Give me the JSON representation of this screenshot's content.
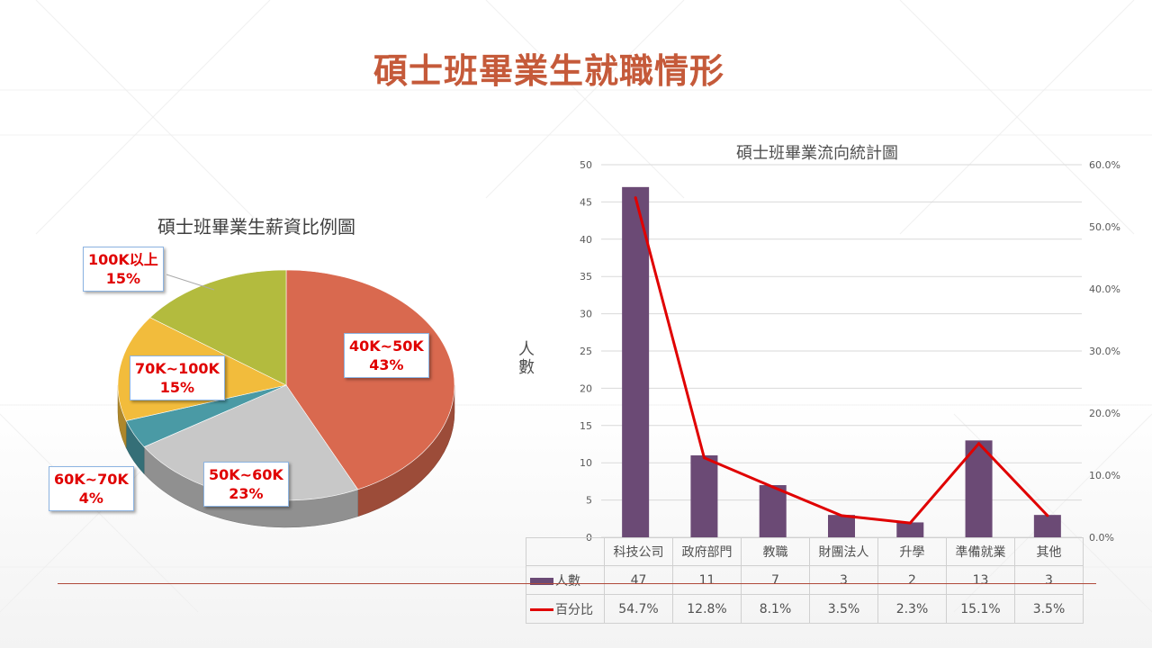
{
  "slide_title": "碩士班畢業生就職情形",
  "chart_data": [
    {
      "type": "pie",
      "title": "碩士班畢業生薪資比例圖",
      "slices": [
        {
          "label": "40K~50K",
          "percent": 43,
          "color": "#d9694f"
        },
        {
          "label": "50K~60K",
          "percent": 23,
          "color": "#c8c8c8"
        },
        {
          "label": "60K~70K",
          "percent": 4,
          "color": "#4a9aa5"
        },
        {
          "label": "70K~100K",
          "percent": 15,
          "color": "#f2bc3c"
        },
        {
          "label": "100K以上",
          "percent": 15,
          "color": "#b3bb3e"
        }
      ]
    },
    {
      "type": "bar",
      "title": "碩士班畢業流向統計圖",
      "ylabel": "人數",
      "categories": [
        "科技公司",
        "政府部門",
        "教職",
        "財團法人",
        "升學",
        "準備就業",
        "其他"
      ],
      "ylim": [
        0,
        50
      ],
      "yticks": [
        "0",
        "5",
        "10",
        "15",
        "20",
        "25",
        "30",
        "35",
        "40",
        "45",
        "50"
      ],
      "y2lim": [
        0,
        60
      ],
      "y2ticks": [
        "0.0%",
        "10.0%",
        "20.0%",
        "30.0%",
        "40.0%",
        "50.0%",
        "60.0%"
      ],
      "series": [
        {
          "name": "人數",
          "type": "bar",
          "color": "#6b4a75",
          "values": [
            47,
            11,
            7,
            3,
            2,
            13,
            3
          ],
          "labels": [
            "47",
            "11",
            "7",
            "3",
            "2",
            "13",
            "3"
          ]
        },
        {
          "name": "百分比",
          "type": "line",
          "color": "#e00000",
          "axis": "secondary",
          "values": [
            54.7,
            12.8,
            8.1,
            3.5,
            2.3,
            15.1,
            3.5
          ],
          "labels": [
            "54.7%",
            "12.8%",
            "8.1%",
            "3.5%",
            "2.3%",
            "15.1%",
            "3.5%"
          ]
        }
      ],
      "grid": true,
      "legend": "data-table"
    }
  ]
}
